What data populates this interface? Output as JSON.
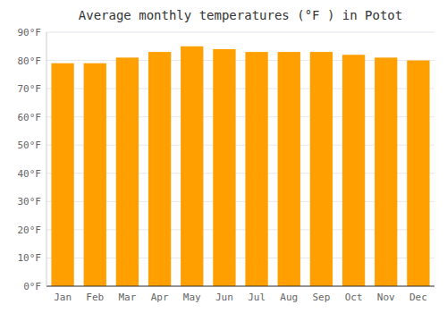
{
  "chart_data": {
    "type": "bar",
    "title": "Average monthly temperatures (°F ) in Potot",
    "categories": [
      "Jan",
      "Feb",
      "Mar",
      "Apr",
      "May",
      "Jun",
      "Jul",
      "Aug",
      "Sep",
      "Oct",
      "Nov",
      "Dec"
    ],
    "values": [
      79,
      79,
      81,
      83,
      85,
      84,
      83,
      83,
      83,
      82,
      81,
      80
    ],
    "color": "#FFA000",
    "ylim": [
      0,
      90
    ],
    "yticks": [
      {
        "value": 0,
        "label": "0°F"
      },
      {
        "value": 10,
        "label": "10°F"
      },
      {
        "value": 20,
        "label": "20°F"
      },
      {
        "value": 30,
        "label": "30°F"
      },
      {
        "value": 40,
        "label": "40°F"
      },
      {
        "value": 50,
        "label": "50°F"
      },
      {
        "value": 60,
        "label": "60°F"
      },
      {
        "value": 70,
        "label": "70°F"
      },
      {
        "value": 80,
        "label": "80°F"
      },
      {
        "value": 90,
        "label": "90°F"
      }
    ],
    "grid": true
  }
}
